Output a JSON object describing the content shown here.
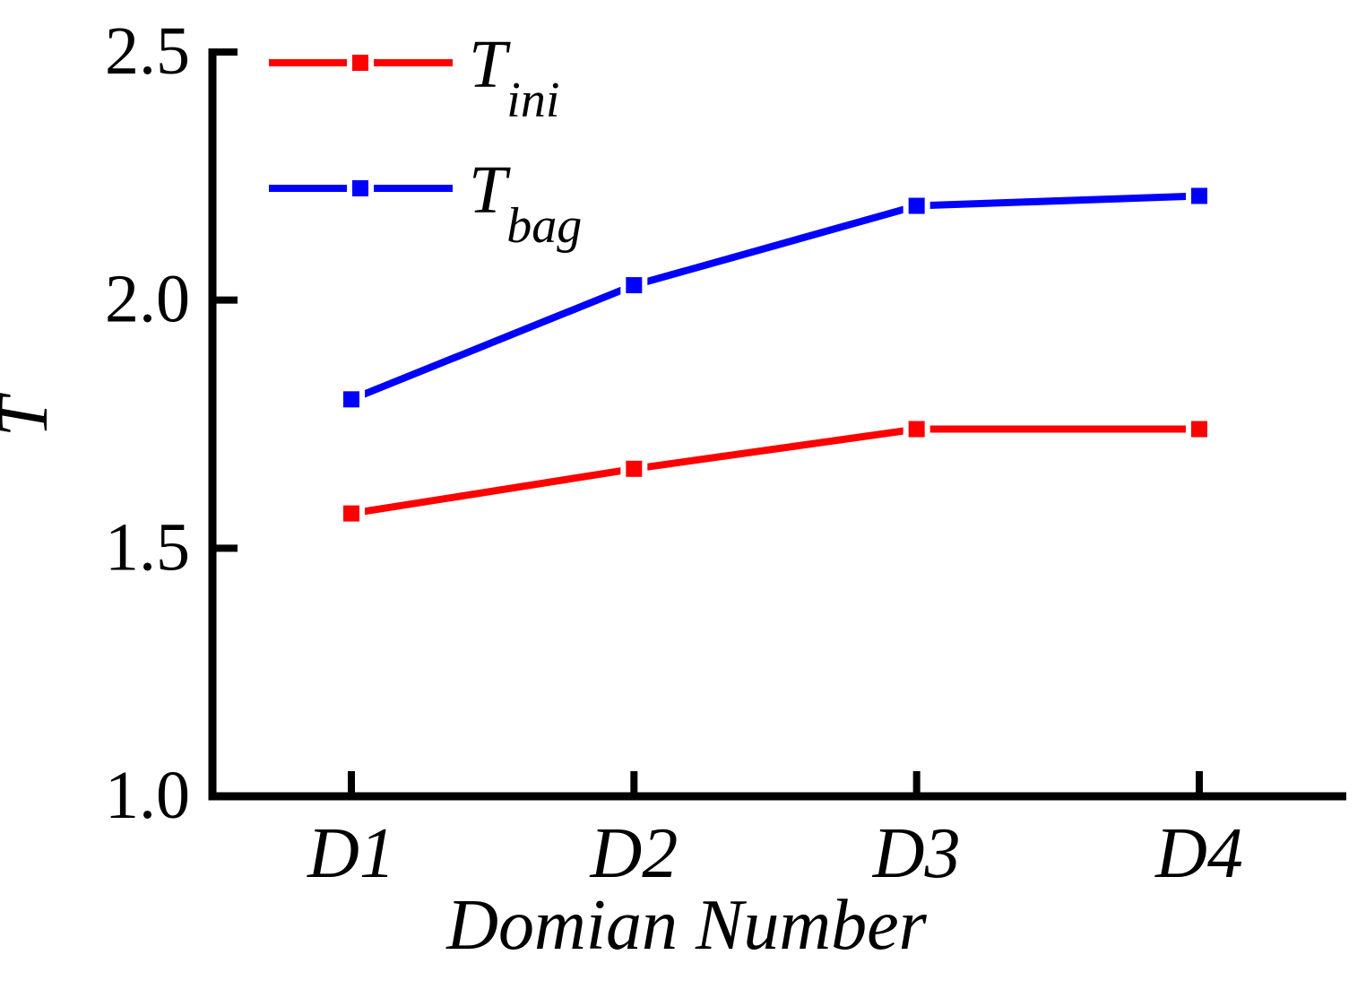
{
  "figure": {
    "background": "#ffffff",
    "axis_color": "#000000"
  },
  "chart_data": {
    "type": "line",
    "title": "",
    "xlabel": "Domian Number",
    "ylabel": "T",
    "categories": [
      "D1",
      "D2",
      "D3",
      "D4"
    ],
    "series": [
      {
        "name": "T_ini",
        "label_main": "T",
        "label_sub": "ini",
        "color": "#ff0000",
        "marker": "square",
        "values": [
          1.57,
          1.66,
          1.74,
          1.74
        ]
      },
      {
        "name": "T_bag",
        "label_main": "T",
        "label_sub": "bag",
        "color": "#0000ff",
        "marker": "square",
        "values": [
          1.8,
          2.03,
          2.19,
          2.21
        ]
      }
    ],
    "ylim": [
      1.0,
      2.5
    ],
    "yticks": [
      1.0,
      1.5,
      2.0,
      2.5
    ],
    "ytick_labels": [
      "1.0",
      "1.5",
      "2.0",
      "2.5"
    ],
    "grid": false,
    "legend_position": "upper-left"
  }
}
